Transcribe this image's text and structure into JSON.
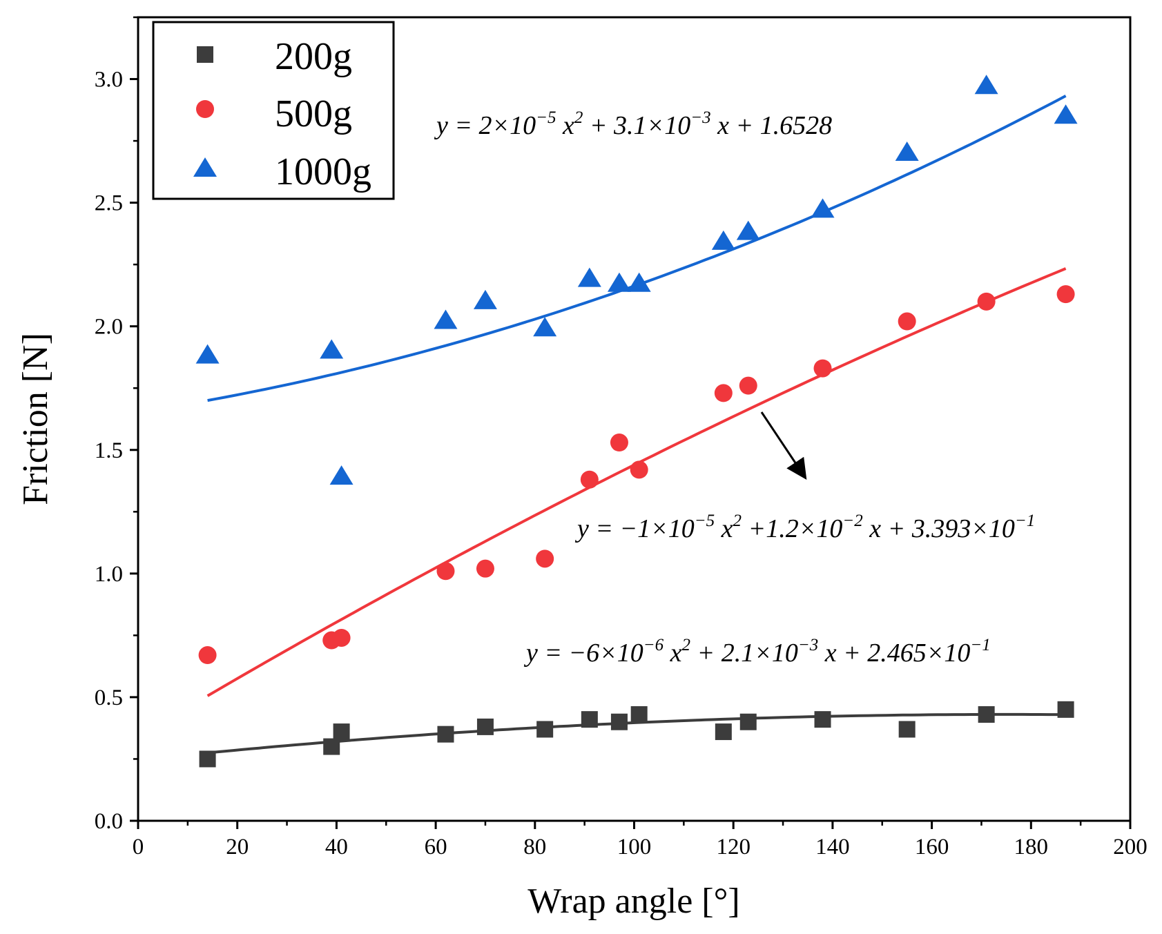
{
  "chart_data": {
    "type": "scatter",
    "title": "",
    "xlabel": "Wrap angle [°]",
    "ylabel": "Friction [N]",
    "xlim": [
      0,
      200
    ],
    "ylim": [
      0,
      3.25
    ],
    "x_ticks": [
      0,
      20,
      40,
      60,
      80,
      100,
      120,
      140,
      160,
      180,
      200
    ],
    "y_ticks": [
      0.0,
      0.5,
      1.0,
      1.5,
      2.0,
      2.5,
      3.0
    ],
    "x_tick_labels": [
      "0",
      "20",
      "40",
      "60",
      "80",
      "100",
      "120",
      "140",
      "160",
      "180",
      "200"
    ],
    "y_tick_labels": [
      "0.0",
      "0.5",
      "1.0",
      "1.5",
      "2.0",
      "2.5",
      "3.0"
    ],
    "grid": false,
    "legend_position": "top-left",
    "x": [
      14,
      39,
      41,
      62,
      70,
      82,
      91,
      97,
      101,
      118,
      123,
      138,
      155,
      171,
      187
    ],
    "series": [
      {
        "name": "200g",
        "marker": "square",
        "color": "#3c3c3c",
        "values": [
          0.25,
          0.3,
          0.36,
          0.35,
          0.38,
          0.37,
          0.41,
          0.4,
          0.43,
          0.36,
          0.4,
          0.41,
          0.37,
          0.43,
          0.45
        ],
        "fit": {
          "a": -6e-06,
          "b": 0.0021,
          "c": 0.2465,
          "x_range": [
            14,
            187
          ]
        }
      },
      {
        "name": "500g",
        "marker": "circle",
        "color": "#f0373c",
        "values": [
          0.67,
          0.73,
          0.74,
          1.01,
          1.02,
          1.06,
          1.38,
          1.53,
          1.42,
          1.73,
          1.76,
          1.83,
          2.02,
          2.1,
          2.13
        ],
        "fit": {
          "a": -1e-05,
          "b": 0.012,
          "c": 0.3393,
          "x_range": [
            14,
            187
          ]
        }
      },
      {
        "name": "1000g",
        "marker": "triangle",
        "color": "#1466d2",
        "values": [
          1.88,
          1.9,
          1.39,
          2.02,
          2.1,
          1.99,
          2.19,
          2.17,
          2.17,
          2.34,
          2.38,
          2.47,
          2.7,
          2.97,
          2.85
        ],
        "fit": {
          "a": 2e-05,
          "b": 0.0031,
          "c": 1.6528,
          "x_range": [
            14,
            187
          ]
        }
      }
    ],
    "annotations": [
      {
        "name": "1000g-equation",
        "parts": [
          "y = 2×10",
          "−5",
          " x",
          "2",
          " + 3.1×10",
          "−3",
          " x + 1.6528"
        ]
      },
      {
        "name": "500g-equation",
        "parts": [
          "y = −1×10",
          "−5",
          " x",
          "2",
          " +1.2×10",
          "−2",
          " x + 3.393×10",
          "−1"
        ]
      },
      {
        "name": "200g-equation",
        "parts": [
          "y = −6×10",
          "−6",
          " x",
          "2",
          " + 2.1×10",
          "−3",
          " x + 2.465×10",
          "−1"
        ]
      }
    ]
  }
}
